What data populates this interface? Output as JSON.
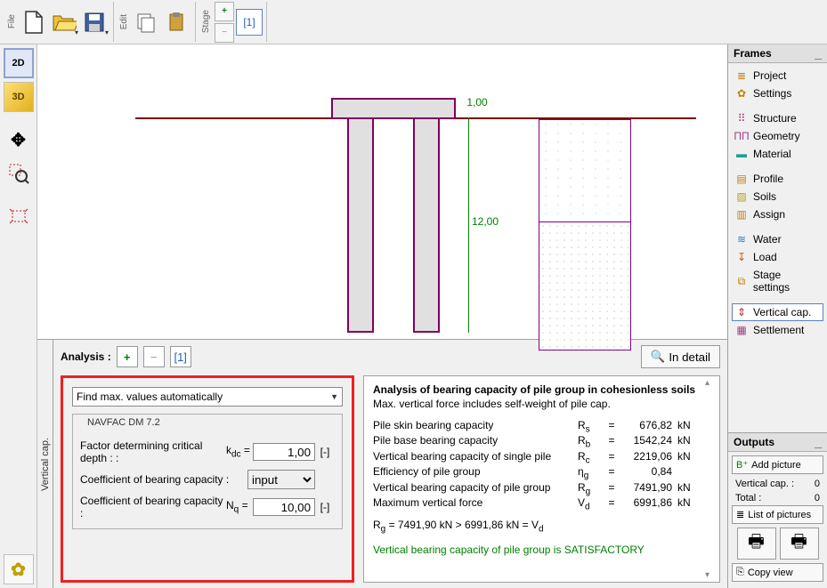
{
  "toolbar": {
    "groups": {
      "file": "File",
      "edit": "Edit",
      "stage": "Stage"
    },
    "stage_num": "[1]"
  },
  "left_tools": {
    "btn2d": "2D",
    "btn3d": "3D"
  },
  "drawing": {
    "cap_color": "#e0e0e0",
    "border_color": "#800060",
    "ground_color": "#800000",
    "soil_border": "#800080",
    "dim_color": "#008000",
    "dim_h": "1,00",
    "dim_v": "12,00"
  },
  "analysis": {
    "label": "Analysis :",
    "stage": "[1]",
    "detail_btn": "In detail",
    "tab": "Vertical cap."
  },
  "inputs": {
    "dropdown": "Find max. values automatically",
    "fieldset": "NAVFAC DM 7.2",
    "row1": {
      "label": "Factor determining critical depth : :",
      "var": "k_dc",
      "val": "1,00",
      "unit": "[-]"
    },
    "row2": {
      "label": "Coefficient of bearing capacity :",
      "sel": "input"
    },
    "row3": {
      "label": "Coefficient of bearing capacity :",
      "var": "N_q",
      "val": "10,00",
      "unit": "[-]"
    },
    "highlight_color": "#f02020"
  },
  "results": {
    "title": "Analysis of bearing capacity of pile group in cohesionless soils",
    "sub": "Max. vertical force includes self-weight of pile cap.",
    "rows": [
      {
        "l": "Pile skin bearing capacity",
        "v": "R_s",
        "n": "676,82",
        "u": "kN"
      },
      {
        "l": "Pile base bearing capacity",
        "v": "R_b",
        "n": "1542,24",
        "u": "kN"
      },
      {
        "l": "Vertical bearing capacity of single pile",
        "v": "R_c",
        "n": "2219,06",
        "u": "kN"
      },
      {
        "l": "Efficiency of pile group",
        "v": "η_g",
        "n": "0,84",
        "u": ""
      },
      {
        "l": "Vertical bearing capacity of pile group",
        "v": "R_g",
        "n": "7491,90",
        "u": "kN"
      },
      {
        "l": "Maximum vertical force",
        "v": "V_d",
        "n": "6991,86",
        "u": "kN"
      }
    ],
    "eq": "R_g = 7491,90 kN > 6991,86 kN = V_d",
    "satisf": "Vertical bearing capacity of pile group is SATISFACTORY"
  },
  "frames": {
    "header": "Frames",
    "items": [
      {
        "icon": "≣",
        "color": "#c08000",
        "label": "Project"
      },
      {
        "icon": "✿",
        "color": "#c08000",
        "label": "Settings"
      },
      {
        "sep": true
      },
      {
        "icon": "⠿",
        "color": "#a04080",
        "label": "Structure"
      },
      {
        "icon": "ΠΠ",
        "color": "#a04080",
        "label": "Geometry"
      },
      {
        "icon": "▬",
        "color": "#20a090",
        "label": "Material"
      },
      {
        "sep": true
      },
      {
        "icon": "▤",
        "color": "#c08000",
        "label": "Profile"
      },
      {
        "icon": "▨",
        "color": "#c0a000",
        "label": "Soils"
      },
      {
        "icon": "▥",
        "color": "#c08000",
        "label": "Assign"
      },
      {
        "sep": true
      },
      {
        "icon": "≋",
        "color": "#2080c0",
        "label": "Water"
      },
      {
        "icon": "↧",
        "color": "#c06000",
        "label": "Load"
      },
      {
        "icon": "⧉",
        "color": "#c08000",
        "label": "Stage settings"
      },
      {
        "sep": true
      },
      {
        "icon": "⇕",
        "color": "#c02020",
        "label": "Vertical cap.",
        "active": true
      },
      {
        "icon": "▦",
        "color": "#a04080",
        "label": "Settlement"
      }
    ]
  },
  "outputs": {
    "header": "Outputs",
    "add_picture": "Add picture",
    "rows": [
      {
        "l": "Vertical cap. :",
        "v": "0"
      },
      {
        "l": "Total :",
        "v": "0"
      }
    ],
    "list_btn": "List of pictures",
    "copy_btn": "Copy view"
  }
}
